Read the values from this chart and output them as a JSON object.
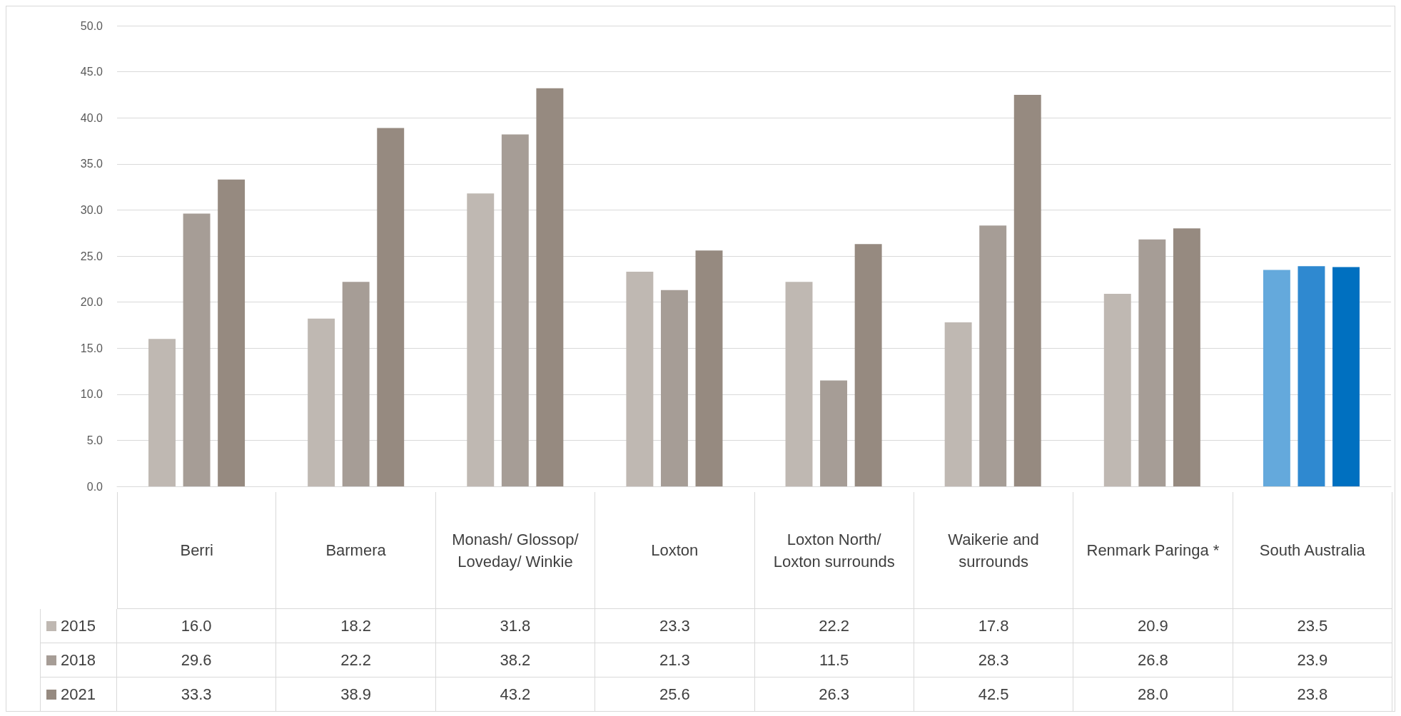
{
  "chart_data": {
    "type": "bar",
    "categories": [
      "Berri",
      "Barmera",
      "Monash/ Glossop/ Loveday/ Winkie",
      "Loxton",
      "Loxton North/ Loxton surrounds",
      "Waikerie and surrounds",
      "Renmark Paringa *",
      "South Australia"
    ],
    "series": [
      {
        "name": "2015",
        "color": "#bfb8b2",
        "colors": [
          "#bfb8b2",
          "#bfb8b2",
          "#bfb8b2",
          "#bfb8b2",
          "#bfb8b2",
          "#bfb8b2",
          "#bfb8b2",
          "#64a9dc"
        ],
        "values": [
          16.0,
          18.2,
          31.8,
          23.3,
          22.2,
          17.8,
          20.9,
          23.5
        ],
        "value_labels": [
          "16.0",
          "18.2",
          "31.8",
          "23.3",
          "22.2",
          "17.8",
          "20.9",
          "23.5"
        ]
      },
      {
        "name": "2018",
        "color": "#a69d96",
        "colors": [
          "#a69d96",
          "#a69d96",
          "#a69d96",
          "#a69d96",
          "#a69d96",
          "#a69d96",
          "#a69d96",
          "#2f89d0"
        ],
        "values": [
          29.6,
          22.2,
          38.2,
          21.3,
          11.5,
          28.3,
          26.8,
          23.9
        ],
        "value_labels": [
          "29.6",
          "22.2",
          "38.2",
          "21.3",
          "11.5",
          "28.3",
          "26.8",
          "23.9"
        ]
      },
      {
        "name": "2021",
        "color": "#968a80",
        "colors": [
          "#968a80",
          "#968a80",
          "#968a80",
          "#968a80",
          "#968a80",
          "#968a80",
          "#968a80",
          "#0070c0"
        ],
        "values": [
          33.3,
          38.9,
          43.2,
          25.6,
          26.3,
          42.5,
          28.0,
          23.8
        ],
        "value_labels": [
          "33.3",
          "38.9",
          "43.2",
          "25.6",
          "26.3",
          "42.5",
          "28.0",
          "23.8"
        ]
      }
    ],
    "ylim": [
      0,
      50
    ],
    "yticks": [
      {
        "value": 0,
        "label": "0.0"
      },
      {
        "value": 5,
        "label": "5.0"
      },
      {
        "value": 10,
        "label": "10.0"
      },
      {
        "value": 15,
        "label": "15.0"
      },
      {
        "value": 20,
        "label": "20.0"
      },
      {
        "value": 25,
        "label": "25.0"
      },
      {
        "value": 30,
        "label": "30.0"
      },
      {
        "value": 35,
        "label": "35.0"
      },
      {
        "value": 40,
        "label": "40.0"
      },
      {
        "value": 45,
        "label": "45.0"
      },
      {
        "value": 50,
        "label": "50.0"
      }
    ],
    "grid": "y",
    "legend": "bottom"
  }
}
